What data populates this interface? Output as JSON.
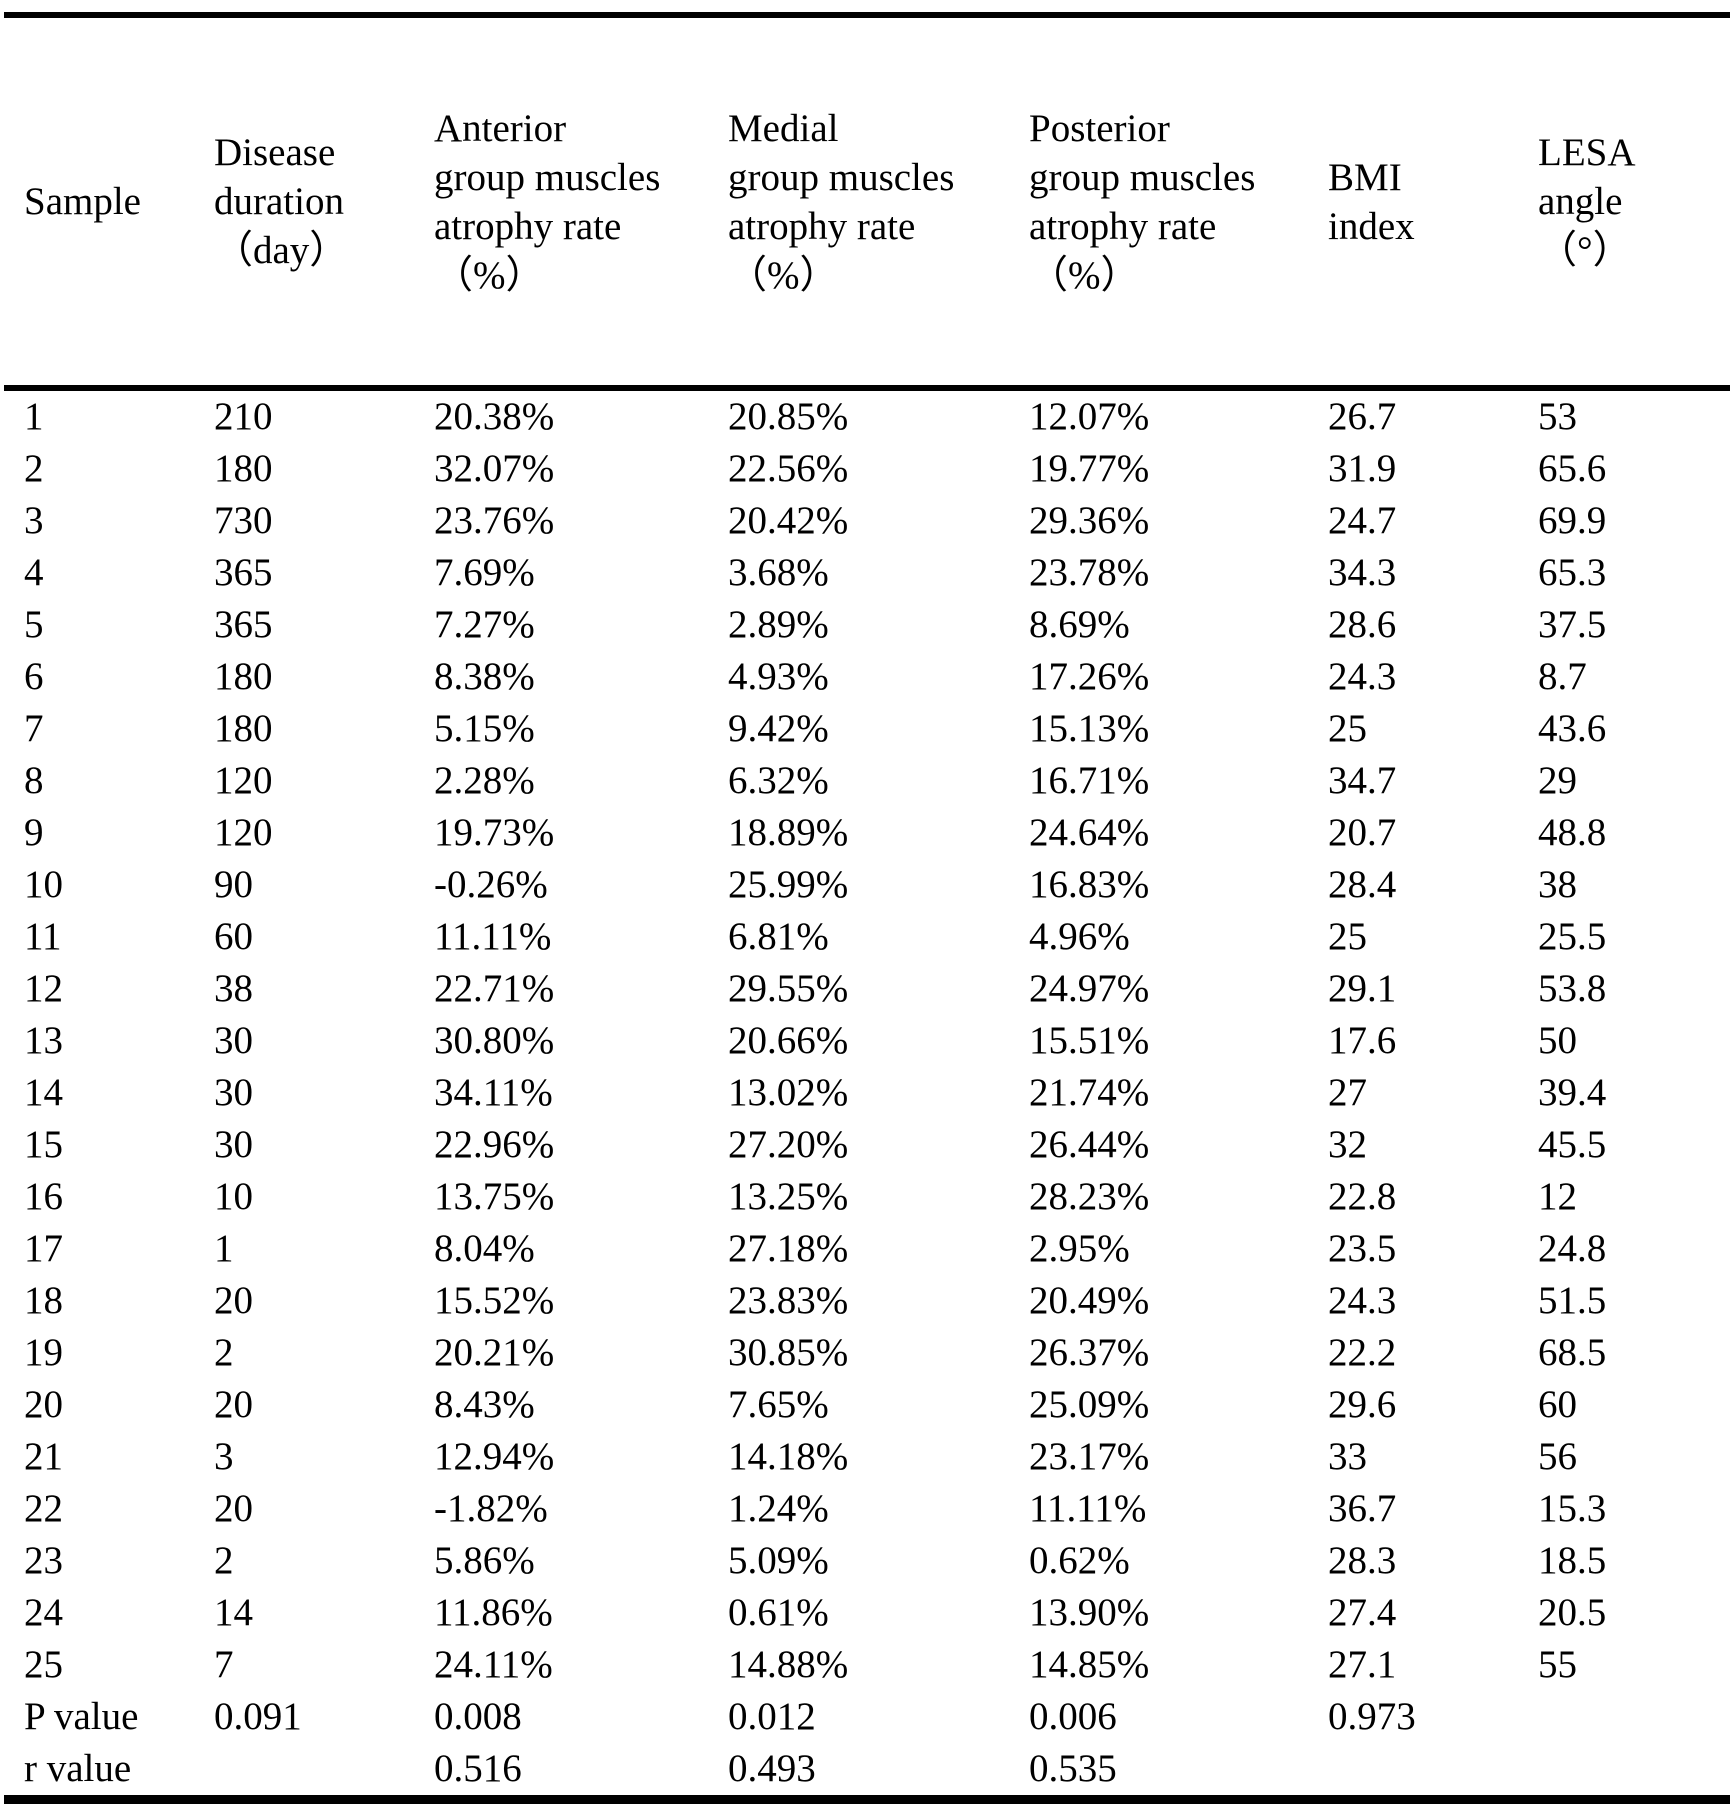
{
  "table": {
    "columns": [
      {
        "id": "sample",
        "header": "Sample"
      },
      {
        "id": "duration",
        "header": "Disease\nduration\n（day）"
      },
      {
        "id": "anterior",
        "header": "Anterior\ngroup muscles\natrophy rate\n（%）"
      },
      {
        "id": "medial",
        "header": "Medial\ngroup muscles\natrophy rate\n（%）"
      },
      {
        "id": "posterior",
        "header": "Posterior\ngroup muscles\natrophy rate\n（%）"
      },
      {
        "id": "bmi",
        "header": "BMI\nindex"
      },
      {
        "id": "lesa",
        "header": "LESA\nangle\n（°）"
      }
    ],
    "rows": [
      [
        "1",
        "210",
        "20.38%",
        "20.85%",
        "12.07%",
        "26.7",
        "53"
      ],
      [
        "2",
        "180",
        "32.07%",
        "22.56%",
        "19.77%",
        "31.9",
        "65.6"
      ],
      [
        "3",
        "730",
        "23.76%",
        "20.42%",
        "29.36%",
        "24.7",
        "69.9"
      ],
      [
        "4",
        "365",
        "7.69%",
        "3.68%",
        "23.78%",
        "34.3",
        "65.3"
      ],
      [
        "5",
        "365",
        "7.27%",
        "2.89%",
        "8.69%",
        "28.6",
        "37.5"
      ],
      [
        "6",
        "180",
        "8.38%",
        "4.93%",
        "17.26%",
        "24.3",
        "8.7"
      ],
      [
        "7",
        "180",
        "5.15%",
        "9.42%",
        "15.13%",
        "25",
        "43.6"
      ],
      [
        "8",
        "120",
        "2.28%",
        "6.32%",
        "16.71%",
        "34.7",
        "29"
      ],
      [
        "9",
        "120",
        "19.73%",
        "18.89%",
        "24.64%",
        "20.7",
        "48.8"
      ],
      [
        "10",
        "90",
        "-0.26%",
        "25.99%",
        "16.83%",
        "28.4",
        "38"
      ],
      [
        "11",
        "60",
        "11.11%",
        "6.81%",
        "4.96%",
        "25",
        "25.5"
      ],
      [
        "12",
        "38",
        "22.71%",
        "29.55%",
        "24.97%",
        "29.1",
        "53.8"
      ],
      [
        "13",
        "30",
        "30.80%",
        "20.66%",
        "15.51%",
        "17.6",
        "50"
      ],
      [
        "14",
        "30",
        "34.11%",
        "13.02%",
        "21.74%",
        "27",
        "39.4"
      ],
      [
        "15",
        "30",
        "22.96%",
        "27.20%",
        "26.44%",
        "32",
        "45.5"
      ],
      [
        "16",
        "10",
        "13.75%",
        "13.25%",
        "28.23%",
        "22.8",
        "12"
      ],
      [
        "17",
        "1",
        "8.04%",
        "27.18%",
        "2.95%",
        "23.5",
        "24.8"
      ],
      [
        "18",
        "20",
        "15.52%",
        "23.83%",
        "20.49%",
        "24.3",
        "51.5"
      ],
      [
        "19",
        "2",
        "20.21%",
        "30.85%",
        "26.37%",
        "22.2",
        "68.5"
      ],
      [
        "20",
        "20",
        "8.43%",
        "7.65%",
        "25.09%",
        "29.6",
        "60"
      ],
      [
        "21",
        "3",
        "12.94%",
        "14.18%",
        "23.17%",
        "33",
        "56"
      ],
      [
        "22",
        "20",
        "-1.82%",
        "1.24%",
        "11.11%",
        "36.7",
        "15.3"
      ],
      [
        "23",
        "2",
        "5.86%",
        "5.09%",
        "0.62%",
        "28.3",
        "18.5"
      ],
      [
        "24",
        "14",
        "11.86%",
        "0.61%",
        "13.90%",
        "27.4",
        "20.5"
      ],
      [
        "25",
        "7",
        "24.11%",
        "14.88%",
        "14.85%",
        "27.1",
        "55"
      ]
    ],
    "stats_rows": [
      [
        "P value",
        "0.091",
        "0.008",
        "0.012",
        "0.006",
        "0.973",
        ""
      ],
      [
        "r value",
        "",
        "0.516",
        "0.493",
        "0.535",
        "",
        ""
      ]
    ]
  }
}
